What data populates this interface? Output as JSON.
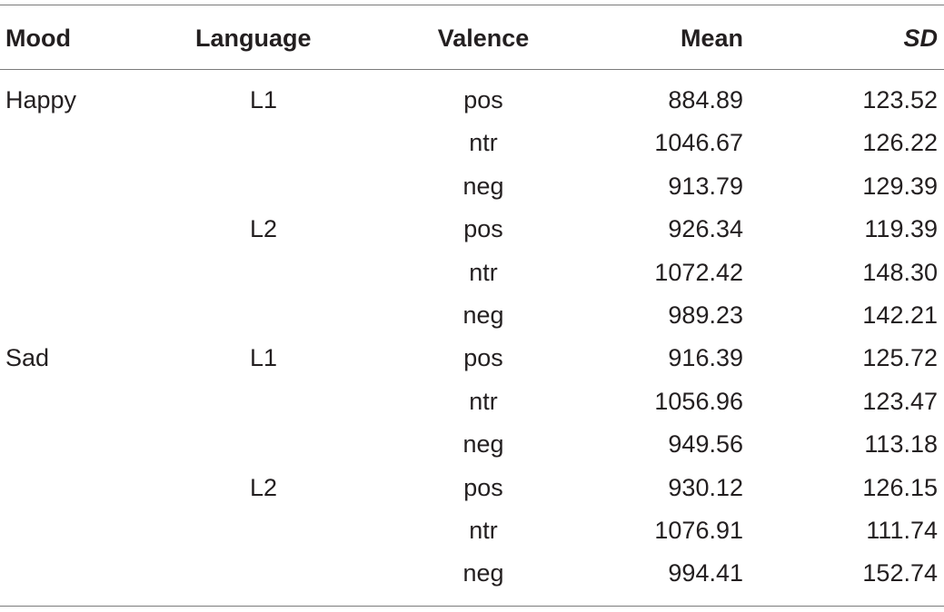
{
  "table": {
    "headers": {
      "mood": "Mood",
      "language": "Language",
      "valence": "Valence",
      "mean": "Mean",
      "sd": "SD"
    },
    "rows": [
      {
        "mood": "Happy",
        "language": "L1",
        "valence": "pos",
        "mean": "884.89",
        "sd": "123.52"
      },
      {
        "mood": "",
        "language": "",
        "valence": "ntr",
        "mean": "1046.67",
        "sd": "126.22"
      },
      {
        "mood": "",
        "language": "",
        "valence": "neg",
        "mean": "913.79",
        "sd": "129.39"
      },
      {
        "mood": "",
        "language": "L2",
        "valence": "pos",
        "mean": "926.34",
        "sd": "119.39"
      },
      {
        "mood": "",
        "language": "",
        "valence": "ntr",
        "mean": "1072.42",
        "sd": "148.30"
      },
      {
        "mood": "",
        "language": "",
        "valence": "neg",
        "mean": "989.23",
        "sd": "142.21"
      },
      {
        "mood": "Sad",
        "language": "L1",
        "valence": "pos",
        "mean": "916.39",
        "sd": "125.72"
      },
      {
        "mood": "",
        "language": "",
        "valence": "ntr",
        "mean": "1056.96",
        "sd": "123.47"
      },
      {
        "mood": "",
        "language": "",
        "valence": "neg",
        "mean": "949.56",
        "sd": "113.18"
      },
      {
        "mood": "",
        "language": "L2",
        "valence": "pos",
        "mean": "930.12",
        "sd": "126.15"
      },
      {
        "mood": "",
        "language": "",
        "valence": "ntr",
        "mean": "1076.91",
        "sd": "111.74"
      },
      {
        "mood": "",
        "language": "",
        "valence": "neg",
        "mean": "994.41",
        "sd": "152.74"
      }
    ]
  }
}
